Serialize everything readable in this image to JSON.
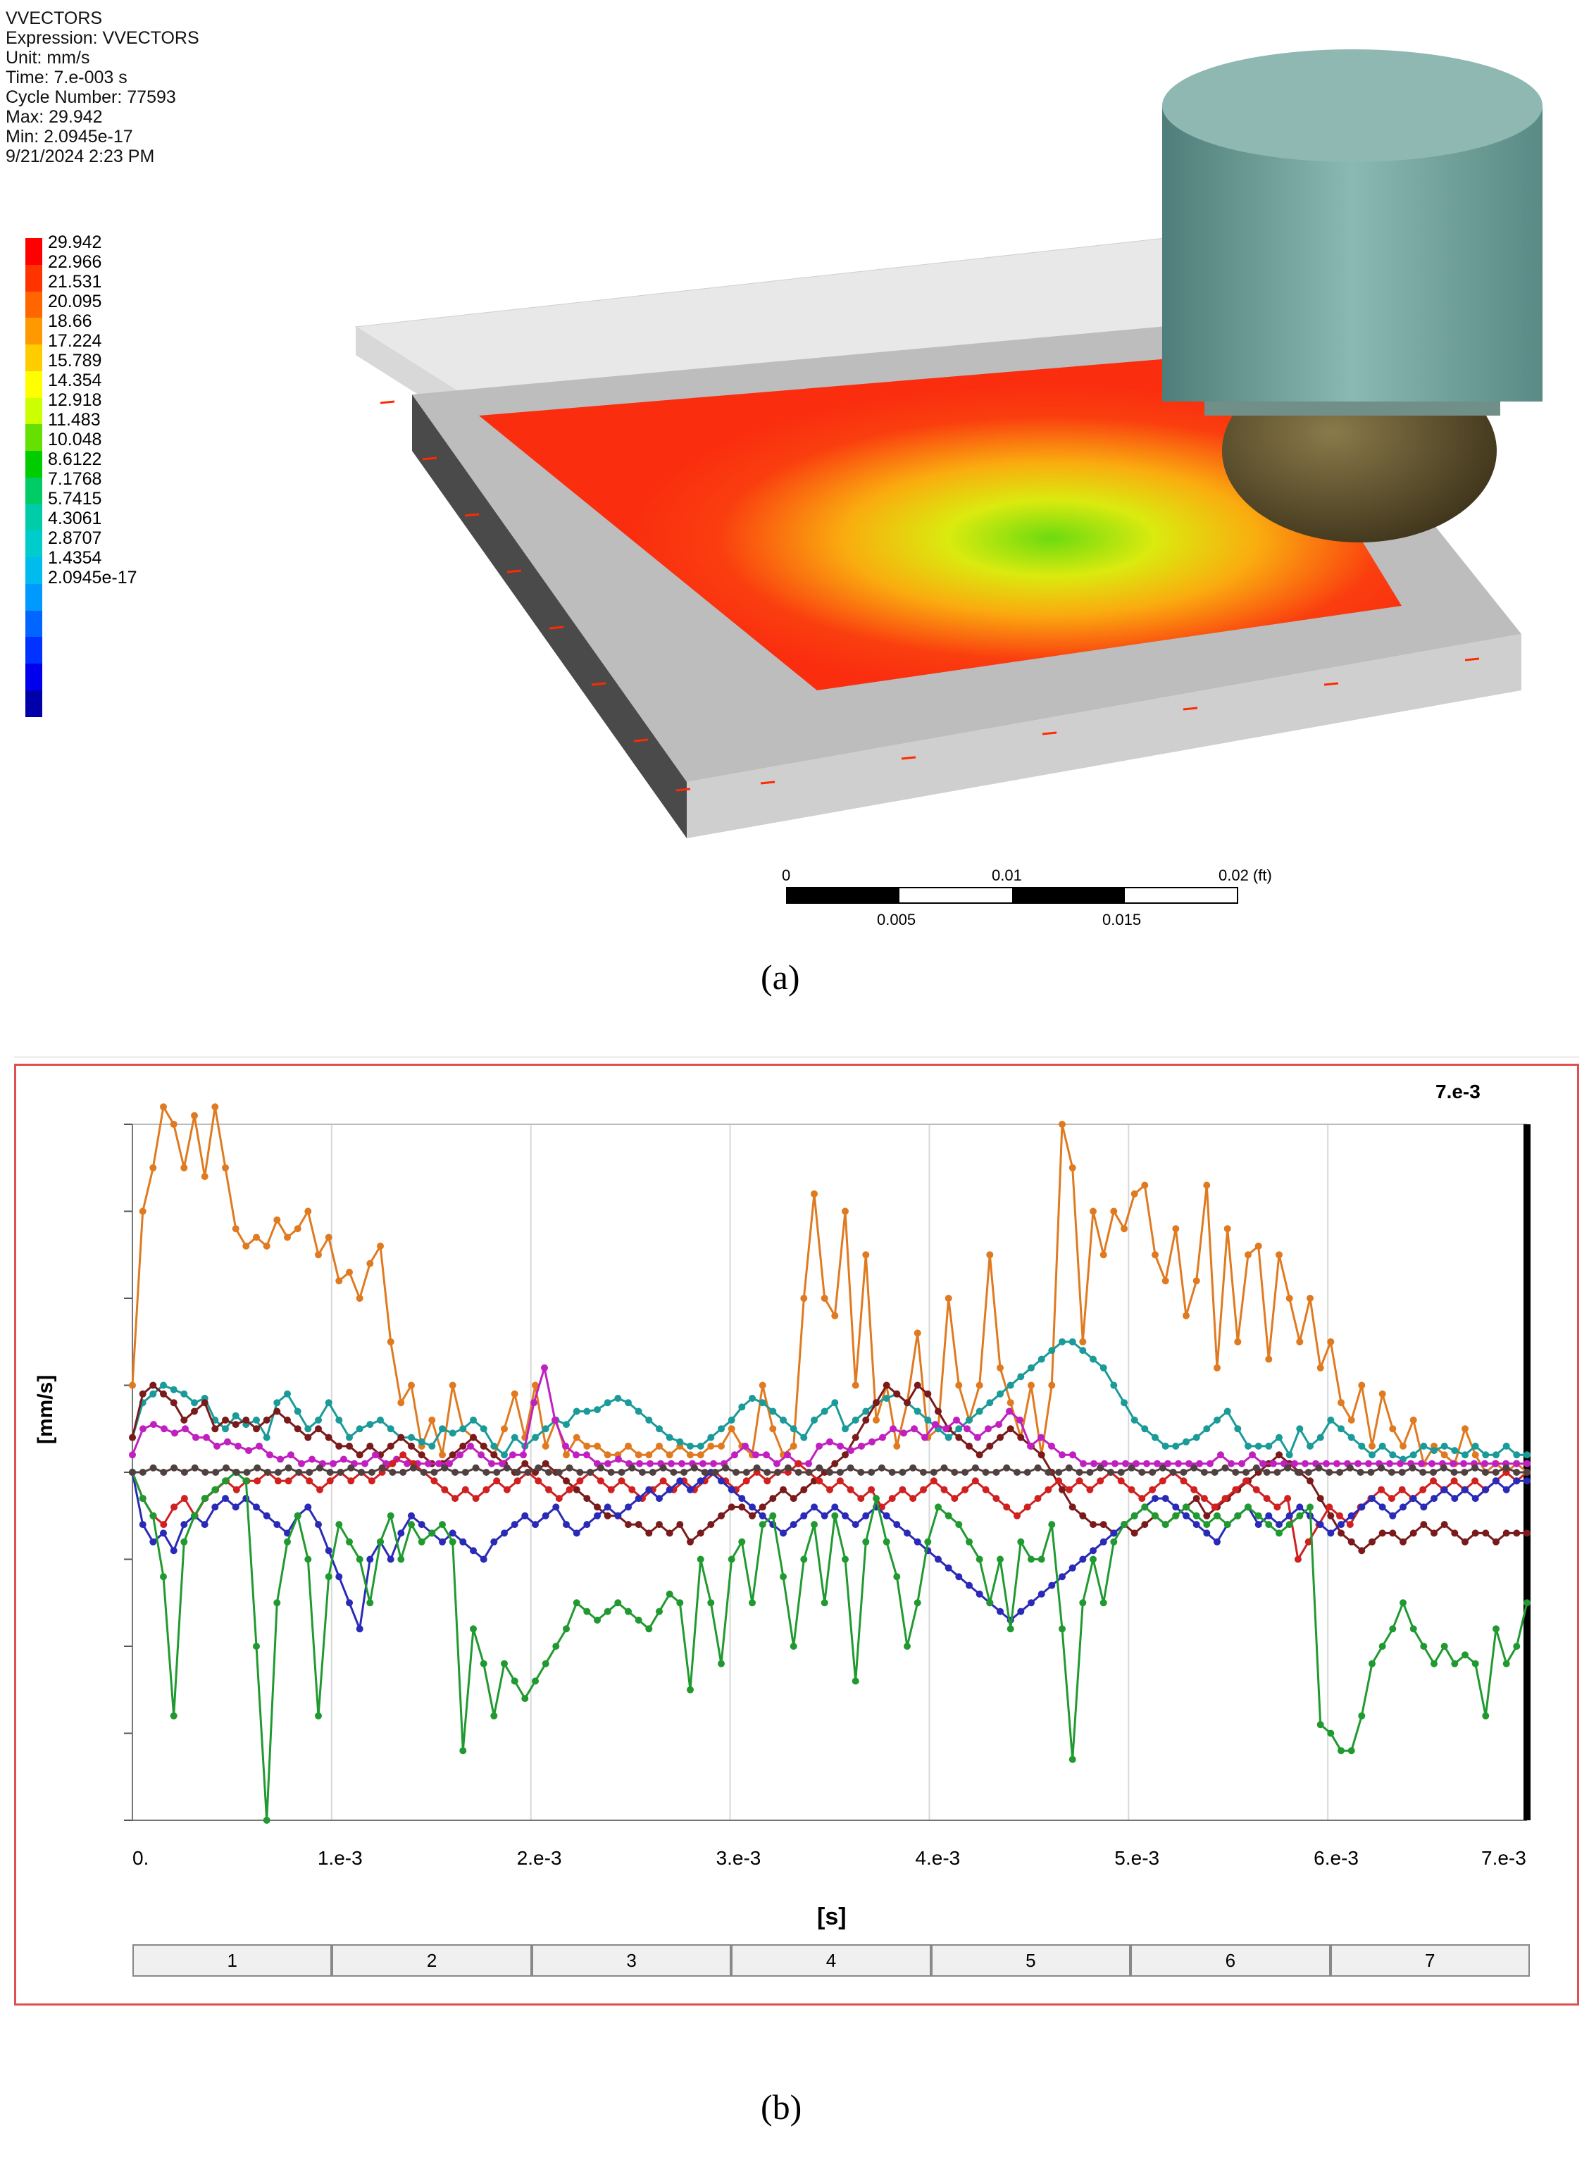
{
  "info_lines": [
    "VVECTORS",
    "Expression: VVECTORS",
    "Unit: mm/s",
    "Time: 7.e-003 s",
    "Cycle Number: 77593",
    "Max: 29.942",
    "Min: 2.0945e-17",
    "9/21/2024 2:23 PM"
  ],
  "legend": {
    "values": [
      "29.942",
      "22.966",
      "21.531",
      "20.095",
      "18.66",
      "17.224",
      "15.789",
      "14.354",
      "12.918",
      "11.483",
      "10.048",
      "8.6122",
      "7.1768",
      "5.7415",
      "4.3061",
      "2.8707",
      "1.4354",
      "2.0945e-17"
    ],
    "colors": [
      "#ff0000",
      "#ff3300",
      "#ff6600",
      "#ff9900",
      "#ffcc00",
      "#ffff00",
      "#ccff00",
      "#66e000",
      "#00cc00",
      "#00cc66",
      "#00ccaa",
      "#00cccc",
      "#00bbee",
      "#0099ff",
      "#0066ff",
      "#0033ff",
      "#0000ee",
      "#0000aa"
    ]
  },
  "scalebar": {
    "top_labels": [
      "0",
      "0.01",
      "0.02 (ft)"
    ],
    "bottom_labels": [
      "0.005",
      "0.015"
    ]
  },
  "captions": {
    "a": "(a)",
    "b": "(b)"
  },
  "chart_data": {
    "type": "line",
    "title": "",
    "xlabel": "[s]",
    "ylabel": "[mm/s]",
    "top_right_label": "7.e-3",
    "x_tick_labels": [
      "0.",
      "1.e-3",
      "2.e-3",
      "3.e-3",
      "4.e-3",
      "5.e-3",
      "6.e-3",
      "7.e-3"
    ],
    "xlim": [
      0,
      7
    ],
    "ylim": [
      -4,
      4
    ],
    "steps": [
      "1",
      "2",
      "3",
      "4",
      "5",
      "6",
      "7"
    ],
    "series": [
      {
        "name": "orange",
        "color": "#e07a20",
        "values": [
          1,
          3,
          3.5,
          4.2,
          4,
          3.5,
          4.1,
          3.4,
          4.2,
          3.5,
          2.8,
          2.6,
          2.7,
          2.6,
          2.9,
          2.7,
          2.8,
          3.0,
          2.5,
          2.7,
          2.2,
          2.3,
          2,
          2.4,
          2.6,
          1.5,
          0.8,
          1.0,
          0.3,
          0.6,
          0.2,
          1.0,
          0.5,
          0.4,
          0.3,
          0.2,
          0.5,
          0.9,
          0.4,
          1.0,
          0.3,
          0.6,
          0.2,
          0.4,
          0.3,
          0.3,
          0.2,
          0.2,
          0.3,
          0.2,
          0.2,
          0.3,
          0.2,
          0.3,
          0.2,
          0.2,
          0.3,
          0.3,
          0.5,
          0.3,
          0.2,
          1.0,
          0.5,
          0.2,
          0.3,
          2,
          3.2,
          2,
          1.8,
          3,
          1.0,
          2.5,
          0.6,
          1.0,
          0.3,
          0.8,
          1.6,
          0.4,
          0.5,
          2,
          1,
          0.6,
          1,
          2.5,
          1.2,
          0.8,
          0.4,
          1.0,
          0.2,
          1,
          4,
          3.5,
          1.5,
          3.0,
          2.5,
          3.0,
          2.8,
          3.2,
          3.3,
          2.5,
          2.2,
          2.8,
          1.8,
          2.2,
          3.3,
          1.2,
          2.8,
          1.5,
          2.5,
          2.6,
          1.3,
          2.5,
          2.0,
          1.5,
          2.0,
          1.2,
          1.5,
          0.8,
          0.6,
          1.0,
          0.3,
          0.9,
          0.5,
          0.3,
          0.6,
          0.1,
          0.3,
          0.2,
          0.1,
          0.5,
          0.2,
          0.0,
          0.1,
          0.0,
          0.1,
          0.0
        ]
      },
      {
        "name": "teal",
        "color": "#1a9a98",
        "values": [
          0.4,
          0.8,
          0.9,
          1.0,
          0.95,
          0.9,
          0.8,
          0.85,
          0.6,
          0.5,
          0.65,
          0.55,
          0.6,
          0.4,
          0.8,
          0.9,
          0.7,
          0.5,
          0.6,
          0.8,
          0.6,
          0.4,
          0.5,
          0.55,
          0.6,
          0.5,
          0.4,
          0.4,
          0.35,
          0.3,
          0.5,
          0.45,
          0.5,
          0.6,
          0.5,
          0.3,
          0.2,
          0.4,
          0.3,
          0.4,
          0.5,
          0.6,
          0.55,
          0.7,
          0.7,
          0.72,
          0.8,
          0.85,
          0.8,
          0.7,
          0.6,
          0.5,
          0.4,
          0.35,
          0.3,
          0.3,
          0.4,
          0.5,
          0.6,
          0.75,
          0.85,
          0.8,
          0.7,
          0.6,
          0.5,
          0.4,
          0.6,
          0.7,
          0.8,
          0.5,
          0.6,
          0.7,
          0.8,
          0.85,
          0.9,
          0.8,
          0.7,
          0.6,
          0.5,
          0.4,
          0.5,
          0.6,
          0.7,
          0.8,
          0.9,
          1.0,
          1.1,
          1.2,
          1.3,
          1.4,
          1.5,
          1.5,
          1.4,
          1.3,
          1.2,
          1.0,
          0.8,
          0.6,
          0.5,
          0.4,
          0.3,
          0.3,
          0.35,
          0.4,
          0.5,
          0.6,
          0.7,
          0.5,
          0.3,
          0.3,
          0.3,
          0.4,
          0.2,
          0.5,
          0.3,
          0.4,
          0.6,
          0.5,
          0.4,
          0.3,
          0.2,
          0.3,
          0.2,
          0.15,
          0.2,
          0.3,
          0.25,
          0.3,
          0.25,
          0.2,
          0.3,
          0.2,
          0.2,
          0.3,
          0.2,
          0.2
        ]
      },
      {
        "name": "maroon",
        "color": "#7a1a1a",
        "values": [
          0.4,
          0.9,
          1.0,
          0.9,
          0.8,
          0.6,
          0.7,
          0.8,
          0.5,
          0.6,
          0.55,
          0.6,
          0.5,
          0.6,
          0.7,
          0.6,
          0.5,
          0.4,
          0.5,
          0.4,
          0.3,
          0.3,
          0.2,
          0.3,
          0.2,
          0.3,
          0.4,
          0.3,
          0.2,
          0.1,
          0.1,
          0.2,
          0.3,
          0.4,
          0.3,
          0.2,
          0.1,
          0.0,
          0.1,
          0.0,
          0.1,
          0.0,
          -0.1,
          -0.2,
          -0.3,
          -0.4,
          -0.5,
          -0.5,
          -0.6,
          -0.6,
          -0.7,
          -0.6,
          -0.7,
          -0.6,
          -0.8,
          -0.7,
          -0.6,
          -0.5,
          -0.4,
          -0.4,
          -0.5,
          -0.4,
          -0.3,
          -0.2,
          -0.3,
          -0.2,
          -0.1,
          0.0,
          0.1,
          0.2,
          0.4,
          0.6,
          0.8,
          1.0,
          0.9,
          0.8,
          1.0,
          0.9,
          0.7,
          0.5,
          0.4,
          0.3,
          0.2,
          0.3,
          0.4,
          0.5,
          0.4,
          0.3,
          0.2,
          0.0,
          -0.2,
          -0.4,
          -0.5,
          -0.6,
          -0.6,
          -0.7,
          -0.6,
          -0.7,
          -0.6,
          -0.5,
          -0.6,
          -0.5,
          -0.4,
          -0.3,
          -0.5,
          -0.4,
          -0.3,
          -0.2,
          -0.1,
          0.0,
          0.1,
          0.2,
          0.1,
          0.0,
          -0.1,
          -0.3,
          -0.5,
          -0.7,
          -0.8,
          -0.9,
          -0.8,
          -0.7,
          -0.7,
          -0.8,
          -0.7,
          -0.6,
          -0.7,
          -0.6,
          -0.7,
          -0.8,
          -0.7,
          -0.7,
          -0.8,
          -0.7,
          -0.7,
          -0.7
        ]
      },
      {
        "name": "magenta",
        "color": "#c020c0",
        "values": [
          0.2,
          0.5,
          0.55,
          0.5,
          0.45,
          0.5,
          0.4,
          0.4,
          0.3,
          0.35,
          0.3,
          0.25,
          0.3,
          0.2,
          0.15,
          0.2,
          0.1,
          0.15,
          0.1,
          0.1,
          0.15,
          0.1,
          0.1,
          0.2,
          0.1,
          0.15,
          0.1,
          0.1,
          0.1,
          0.1,
          0.1,
          0.2,
          0.3,
          0.2,
          0.1,
          0.1,
          0.2,
          0.2,
          0.8,
          1.2,
          0.6,
          0.3,
          0.2,
          0.2,
          0.1,
          0.1,
          0.15,
          0.1,
          0.1,
          0.1,
          0.1,
          0.1,
          0.1,
          0.1,
          0.1,
          0.1,
          0.1,
          0.2,
          0.3,
          0.2,
          0.2,
          0.1,
          0.2,
          0.1,
          0.1,
          0.3,
          0.35,
          0.3,
          0.25,
          0.3,
          0.35,
          0.4,
          0.5,
          0.45,
          0.5,
          0.4,
          0.55,
          0.5,
          0.6,
          0.5,
          0.4,
          0.5,
          0.55,
          0.7,
          0.6,
          0.3,
          0.4,
          0.3,
          0.2,
          0.2,
          0.1,
          0.1,
          0.1,
          0.1,
          0.1,
          0.1,
          0.1,
          0.1,
          0.1,
          0.1,
          0.1,
          0.1,
          0.1,
          0.2,
          0.1,
          0.1,
          0.2,
          0.1,
          0.1,
          0.1,
          0.1,
          0.1,
          0.1,
          0.1,
          0.1,
          0.1,
          0.1,
          0.1,
          0.1,
          0.1,
          0.1,
          0.1,
          0.1,
          0.1,
          0.1,
          0.1,
          0.1,
          0.1,
          0.1,
          0.1,
          0.1,
          0.1,
          0.1
        ]
      },
      {
        "name": "red",
        "color": "#d02020",
        "values": [
          0,
          -0.3,
          -0.5,
          -0.6,
          -0.4,
          -0.3,
          -0.5,
          -0.3,
          -0.2,
          -0.1,
          -0.2,
          -0.1,
          -0.1,
          0,
          -0.1,
          -0.1,
          0,
          -0.1,
          -0.2,
          -0.1,
          0,
          -0.1,
          0,
          -0.1,
          0,
          0.1,
          0.2,
          0.1,
          0,
          -0.1,
          -0.2,
          -0.3,
          -0.2,
          -0.3,
          -0.2,
          -0.1,
          -0.2,
          -0.1,
          0,
          -0.1,
          -0.2,
          -0.3,
          -0.2,
          -0.1,
          0,
          -0.1,
          -0.2,
          -0.1,
          -0.2,
          -0.3,
          -0.2,
          -0.1,
          -0.2,
          -0.1,
          -0.2,
          -0.1,
          0,
          -0.1,
          -0.2,
          -0.1,
          0,
          -0.1,
          0,
          0,
          0.1,
          0,
          -0.1,
          -0.2,
          -0.1,
          -0.2,
          -0.3,
          -0.2,
          -0.4,
          -0.3,
          -0.2,
          -0.3,
          -0.2,
          -0.1,
          -0.2,
          -0.3,
          -0.2,
          -0.1,
          -0.2,
          -0.3,
          -0.4,
          -0.5,
          -0.4,
          -0.3,
          -0.2,
          -0.1,
          -0.2,
          -0.1,
          -0.2,
          -0.1,
          0,
          -0.1,
          -0.2,
          -0.3,
          -0.2,
          -0.1,
          0,
          -0.1,
          -0.2,
          -0.3,
          -0.4,
          -0.3,
          -0.2,
          -0.1,
          -0.2,
          -0.3,
          -0.4,
          -0.3,
          -1.0,
          -0.8,
          -0.6,
          -0.4,
          -0.5,
          -0.6,
          -0.4,
          -0.3,
          -0.2,
          -0.3,
          -0.2,
          -0.3,
          -0.2,
          -0.1,
          -0.2,
          -0.1,
          -0.2,
          -0.1,
          -0.2,
          -0.1,
          0,
          -0.1,
          0
        ]
      },
      {
        "name": "blue",
        "color": "#2a2ab8",
        "values": [
          0,
          -0.6,
          -0.8,
          -0.7,
          -0.9,
          -0.6,
          -0.5,
          -0.6,
          -0.4,
          -0.3,
          -0.4,
          -0.3,
          -0.4,
          -0.5,
          -0.6,
          -0.7,
          -0.5,
          -0.4,
          -0.6,
          -0.9,
          -1.2,
          -1.5,
          -1.8,
          -1.0,
          -0.8,
          -1.0,
          -0.7,
          -0.5,
          -0.6,
          -0.7,
          -0.8,
          -0.7,
          -0.8,
          -0.9,
          -1.0,
          -0.8,
          -0.7,
          -0.6,
          -0.5,
          -0.6,
          -0.5,
          -0.4,
          -0.6,
          -0.7,
          -0.6,
          -0.5,
          -0.4,
          -0.5,
          -0.4,
          -0.3,
          -0.2,
          -0.3,
          -0.2,
          -0.1,
          -0.2,
          -0.1,
          0,
          -0.1,
          -0.2,
          -0.3,
          -0.4,
          -0.5,
          -0.6,
          -0.7,
          -0.6,
          -0.5,
          -0.4,
          -0.5,
          -0.4,
          -0.5,
          -0.6,
          -0.5,
          -0.4,
          -0.5,
          -0.6,
          -0.7,
          -0.8,
          -0.9,
          -1.0,
          -1.1,
          -1.2,
          -1.3,
          -1.4,
          -1.5,
          -1.6,
          -1.7,
          -1.6,
          -1.5,
          -1.4,
          -1.3,
          -1.2,
          -1.1,
          -1.0,
          -0.9,
          -0.8,
          -0.7,
          -0.6,
          -0.5,
          -0.4,
          -0.3,
          -0.3,
          -0.4,
          -0.5,
          -0.6,
          -0.7,
          -0.8,
          -0.6,
          -0.5,
          -0.4,
          -0.6,
          -0.5,
          -0.6,
          -0.5,
          -0.4,
          -0.5,
          -0.6,
          -0.7,
          -0.6,
          -0.5,
          -0.4,
          -0.3,
          -0.4,
          -0.5,
          -0.4,
          -0.3,
          -0.4,
          -0.3,
          -0.2,
          -0.3,
          -0.2,
          -0.3,
          -0.2,
          -0.1,
          -0.2,
          -0.1,
          -0.1
        ]
      },
      {
        "name": "green",
        "color": "#209a30",
        "values": [
          0,
          -0.3,
          -0.5,
          -1.2,
          -2.8,
          -0.8,
          -0.5,
          -0.3,
          -0.2,
          -0.1,
          0,
          -0.1,
          -2,
          -4,
          -1.5,
          -0.8,
          -0.5,
          -1.0,
          -2.8,
          -1.2,
          -0.6,
          -0.8,
          -1.0,
          -1.5,
          -0.8,
          -0.5,
          -1.0,
          -0.6,
          -0.8,
          -0.7,
          -0.6,
          -0.8,
          -3.2,
          -1.8,
          -2.2,
          -2.8,
          -2.2,
          -2.4,
          -2.6,
          -2.4,
          -2.2,
          -2.0,
          -1.8,
          -1.5,
          -1.6,
          -1.7,
          -1.6,
          -1.5,
          -1.6,
          -1.7,
          -1.8,
          -1.6,
          -1.4,
          -1.5,
          -2.5,
          -1.0,
          -1.5,
          -2.2,
          -1.0,
          -0.8,
          -1.5,
          -0.6,
          -0.5,
          -1.2,
          -2.0,
          -1.0,
          -0.6,
          -1.5,
          -0.5,
          -1.0,
          -2.4,
          -0.8,
          -0.3,
          -0.8,
          -1.2,
          -2.0,
          -1.5,
          -0.8,
          -0.4,
          -0.5,
          -0.6,
          -0.8,
          -1.0,
          -1.5,
          -1.0,
          -1.8,
          -0.8,
          -1.0,
          -1.0,
          -0.6,
          -1.8,
          -3.3,
          -1.5,
          -1.0,
          -1.5,
          -0.8,
          -0.6,
          -0.5,
          -0.4,
          -0.5,
          -0.6,
          -0.5,
          -0.4,
          -0.5,
          -0.6,
          -0.5,
          -0.6,
          -0.5,
          -0.4,
          -0.5,
          -0.6,
          -0.7,
          -0.6,
          -0.5,
          -0.4,
          -2.9,
          -3.0,
          -3.2,
          -3.2,
          -2.8,
          -2.2,
          -2.0,
          -1.8,
          -1.5,
          -1.8,
          -2.0,
          -2.2,
          -2.0,
          -2.2,
          -2.1,
          -2.2,
          -2.8,
          -1.8,
          -2.2,
          -2.0,
          -1.5
        ]
      },
      {
        "name": "dark",
        "color": "#504040",
        "values": [
          0,
          0,
          0.05,
          0,
          0.05,
          0,
          0.05,
          0,
          0,
          0.05,
          0,
          0,
          0.05,
          0,
          0,
          0.05,
          0,
          0,
          0.05,
          0,
          0,
          0.05,
          0,
          0,
          0.05,
          0,
          0,
          0.05,
          0,
          0,
          0.05,
          0,
          0,
          0.05,
          0,
          0,
          0.05,
          0,
          0,
          0.05,
          0,
          0,
          0.05,
          0,
          0,
          0.05,
          0,
          0,
          0.05,
          0,
          0,
          0.05,
          0,
          0,
          0.05,
          0,
          0,
          0.05,
          0,
          0,
          0.05,
          0,
          0,
          0.05,
          0,
          0,
          0.05,
          0,
          0,
          0.05,
          0,
          0,
          0.05,
          0,
          0,
          0.05,
          0,
          0,
          0.05,
          0,
          0,
          0.05,
          0,
          0,
          0.05,
          0,
          0,
          0.05,
          0,
          0,
          0.05,
          0,
          0,
          0.05,
          0,
          0,
          0.05,
          0,
          0,
          0.05,
          0,
          0,
          0.05,
          0,
          0,
          0.05,
          0,
          0,
          0.05,
          0,
          0,
          0.05,
          0,
          0,
          0.05,
          0,
          0,
          0.05,
          0,
          0,
          0.05,
          0,
          0,
          0.05,
          0,
          0,
          0.05,
          0,
          0,
          0.05,
          0,
          0,
          0.05,
          0,
          0
        ]
      }
    ]
  }
}
